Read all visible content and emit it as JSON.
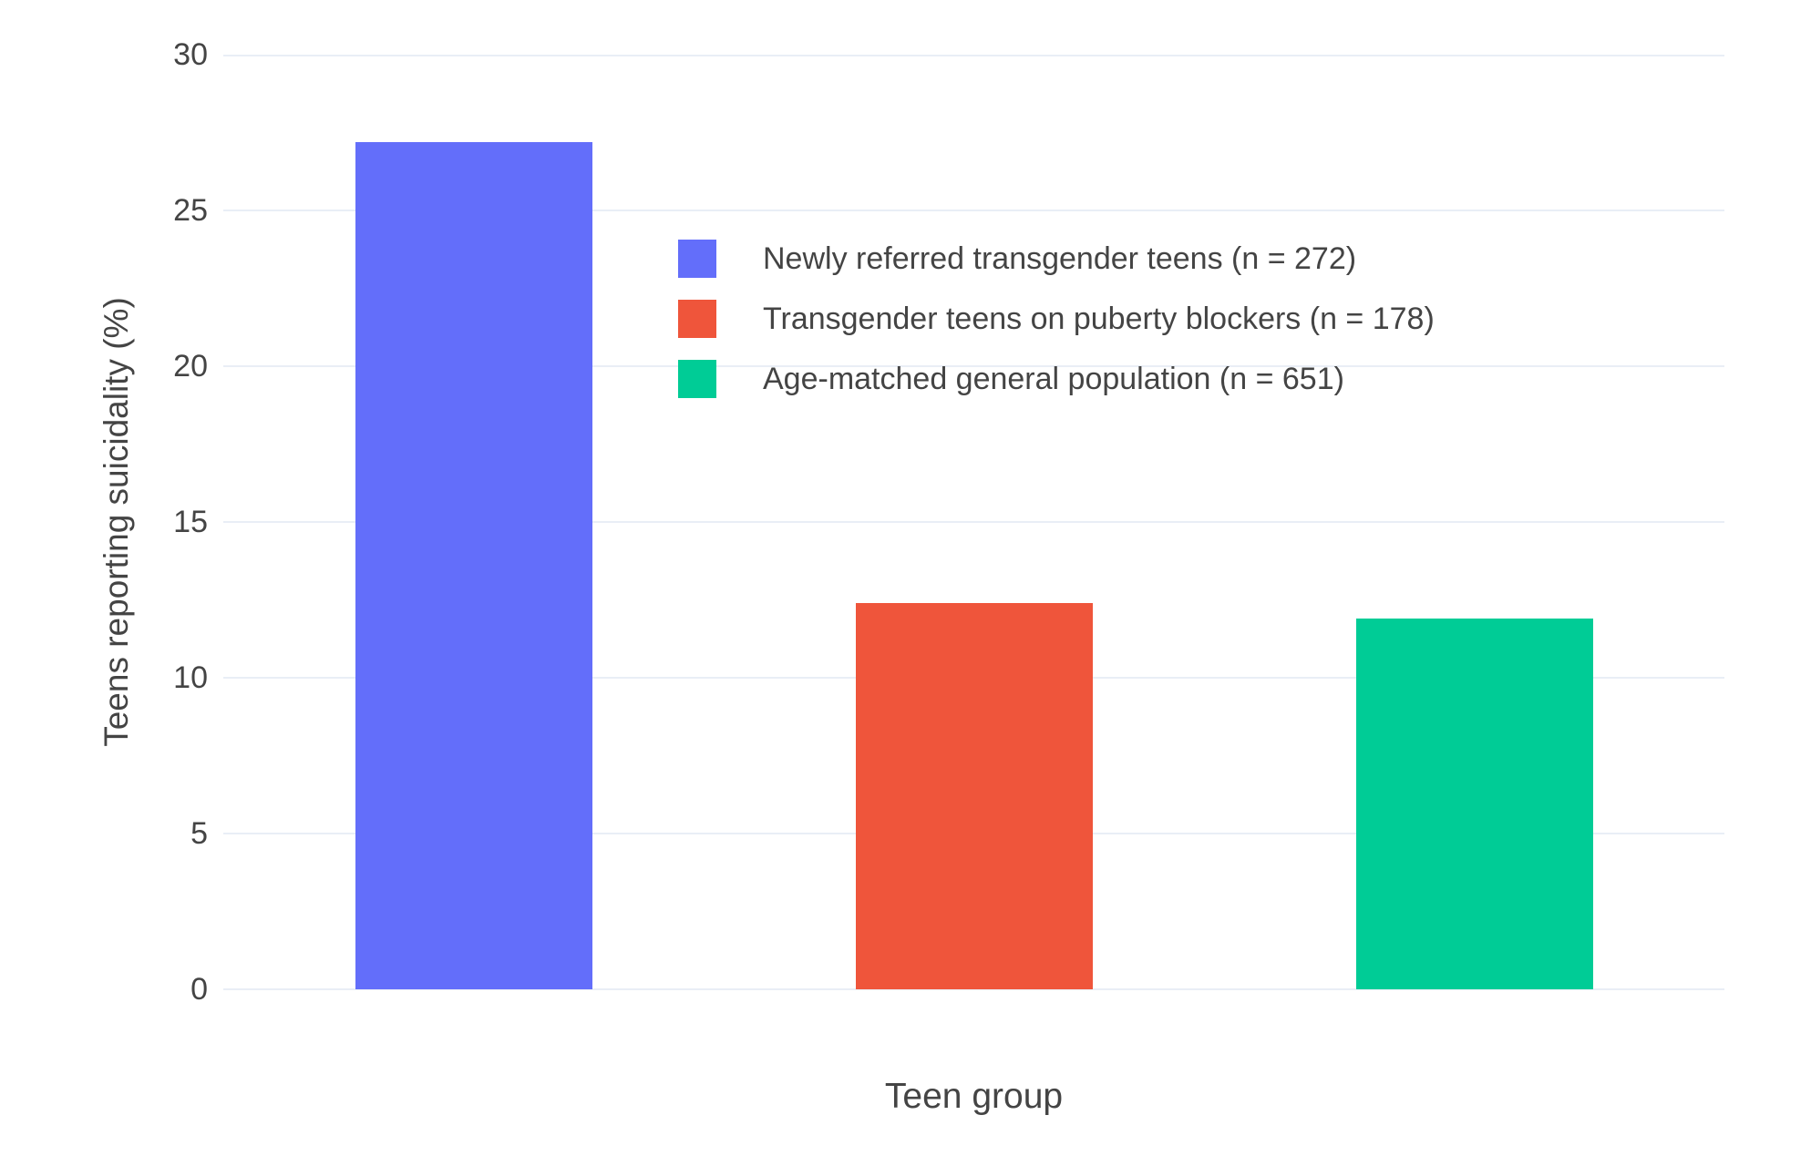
{
  "chart_data": {
    "type": "bar",
    "title": "",
    "xlabel": "Teen group",
    "ylabel": "Teens reporting suicidality (%)",
    "ylim": [
      0,
      30
    ],
    "yticks": [
      0,
      5,
      10,
      15,
      20,
      25,
      30
    ],
    "grid": true,
    "background_color": "#ffffff",
    "gridline_color": "#e9eef6",
    "text_color": "#444444",
    "legend_position": "inside-upper-middle",
    "categories": [
      "Newly referred transgender teens",
      "Transgender teens on puberty blockers",
      "Age-matched general population"
    ],
    "series": [
      {
        "name": "Newly referred transgender teens (n = 272)",
        "value": 27.2,
        "color": "#636EFA"
      },
      {
        "name": "Transgender teens on puberty blockers (n = 178)",
        "value": 12.4,
        "color": "#EF553B"
      },
      {
        "name": "Age-matched general population (n = 651)",
        "value": 11.9,
        "color": "#00CC96"
      }
    ]
  }
}
